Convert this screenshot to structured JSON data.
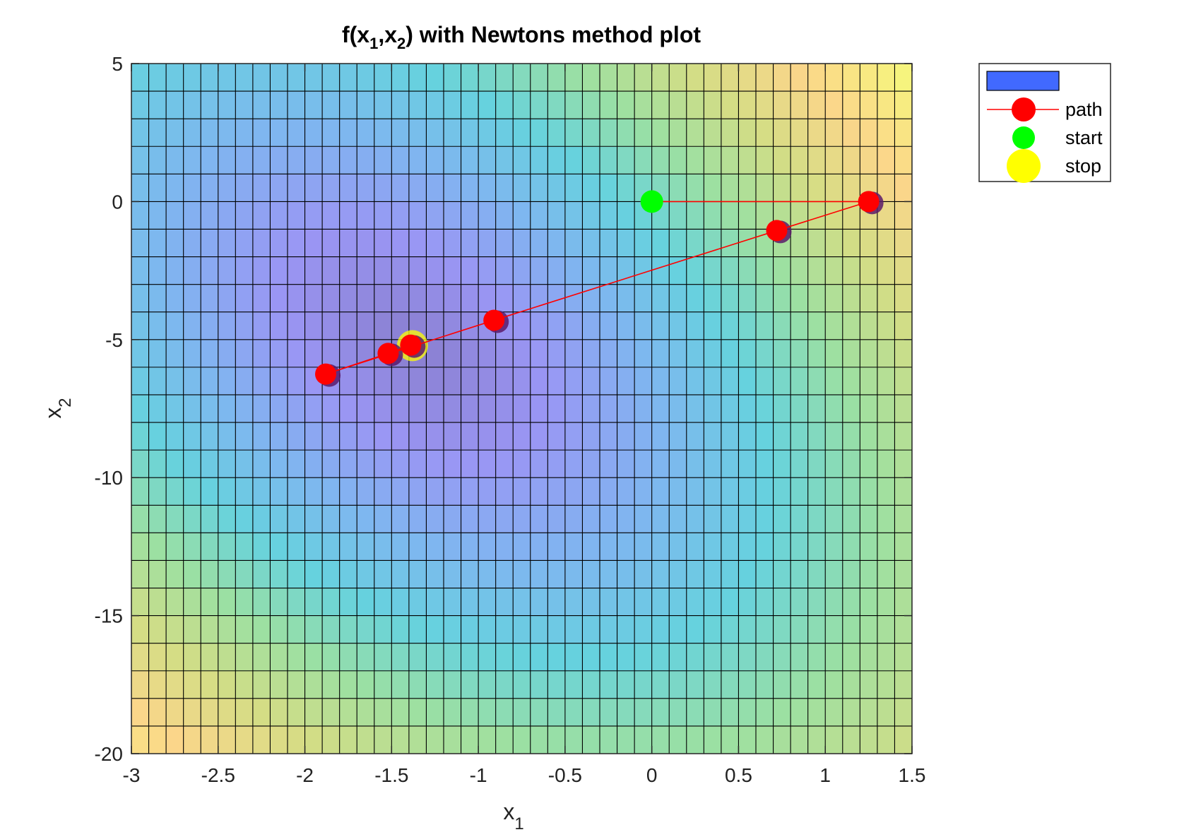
{
  "chart_data": {
    "type": "heatmap",
    "title": {
      "prefix": "f(x",
      "sub1": "1",
      "comma": ",x",
      "sub2": "2",
      "suffix": ") with Newtons method plot"
    },
    "xlabel": {
      "base": "x",
      "sub": "1"
    },
    "ylabel": {
      "base": "x",
      "sub": "2"
    },
    "xlim": [
      -3,
      1.5
    ],
    "ylim": [
      -20,
      5
    ],
    "x_ticks": [
      -3,
      -2.5,
      -2,
      -1.5,
      -1,
      -0.5,
      0,
      0.5,
      1,
      1.5
    ],
    "x_tick_labels": [
      "-3",
      "-2.5",
      "-2",
      "-1.5",
      "-1",
      "-0.5",
      "0",
      "0.5",
      "1",
      "1.5"
    ],
    "y_ticks": [
      5,
      0,
      -5,
      -10,
      -15,
      -20
    ],
    "y_tick_labels": [
      "5",
      "0",
      "-5",
      "-10",
      "-15",
      "-20"
    ],
    "grid_step": {
      "x": 0.1,
      "y": 1
    },
    "surface": {
      "minimum": [
        -1.38,
        -5.25
      ],
      "colormap": [
        "#8a7fd0",
        "#9a96f4",
        "#7fb6f0",
        "#66d2de",
        "#9ce0a2",
        "#d4dd85",
        "#fbd68a",
        "#f6f47e"
      ],
      "facealpha": 0.65,
      "edge_color": "#000000"
    },
    "series": [
      {
        "name": "path",
        "type": "line",
        "color": "#ff0000",
        "points": [
          [
            0,
            0
          ],
          [
            1.25,
            0
          ],
          [
            0.72,
            -1.05
          ],
          [
            -0.91,
            -4.3
          ],
          [
            -1.88,
            -6.25
          ],
          [
            -1.52,
            -5.5
          ],
          [
            -1.39,
            -5.2
          ]
        ]
      },
      {
        "name": "start",
        "type": "scatter",
        "color": "#00ff00",
        "points": [
          [
            0,
            0
          ]
        ]
      },
      {
        "name": "stop",
        "type": "scatter",
        "color": "#ffff00",
        "points": [
          [
            -1.38,
            -5.22
          ]
        ]
      }
    ],
    "legend": {
      "position": "outside-top-right",
      "entries": [
        {
          "label": "",
          "kind": "patch",
          "color": "#4169ff"
        },
        {
          "label": "path",
          "kind": "line-marker",
          "color": "#ff0000"
        },
        {
          "label": "start",
          "kind": "marker",
          "color": "#00ff00"
        },
        {
          "label": "stop",
          "kind": "marker",
          "color": "#ffff00"
        }
      ]
    }
  }
}
